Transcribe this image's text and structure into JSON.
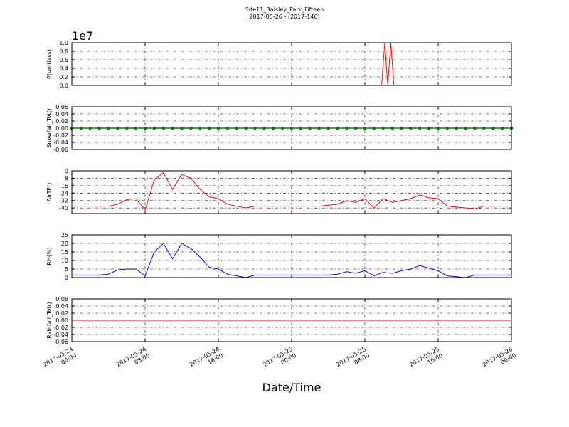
{
  "title": "Site11_Baisley_Park_Fifteen",
  "subtitle": "2017-05-26 - (2017-146)",
  "xlabel": "Date/Time",
  "chart_data": [
    {
      "type": "line",
      "ylabel": "P(unitless)",
      "y_offset_label": "1e7",
      "grid": true,
      "xlim": [
        "2017-05-24 00:00",
        "2017-05-26 00:00"
      ],
      "ylim": [
        0,
        10000000
      ],
      "yticks": [
        {
          "value": 0,
          "label": "0.0"
        },
        {
          "value": 2000000,
          "label": "0.2"
        },
        {
          "value": 4000000,
          "label": "0.4"
        },
        {
          "value": 6000000,
          "label": "0.6"
        },
        {
          "value": 8000000,
          "label": "0.8"
        },
        {
          "value": 10000000,
          "label": "1.0"
        }
      ],
      "series": [
        {
          "color": "#ff0000",
          "marker": false,
          "x": [
            "2017-05-24 00:00",
            "2017-05-25 09:50",
            "2017-05-25 10:10",
            "2017-05-25 10:30",
            "2017-05-25 10:50",
            "2017-05-25 11:10",
            "2017-05-26 00:00"
          ],
          "values": [
            0,
            0,
            10000000,
            0,
            10000000,
            0,
            0
          ]
        }
      ]
    },
    {
      "type": "line",
      "ylabel": "Snowfall_Tot()",
      "grid": true,
      "xlim": [
        "2017-05-24 00:00",
        "2017-05-26 00:00"
      ],
      "ylim": [
        -0.06,
        0.06
      ],
      "yticks": [
        {
          "value": -0.06,
          "label": "-0.06"
        },
        {
          "value": -0.04,
          "label": "-0.04"
        },
        {
          "value": -0.02,
          "label": "-0.02"
        },
        {
          "value": 0,
          "label": "0.00"
        },
        {
          "value": 0.02,
          "label": "0.02"
        },
        {
          "value": 0.04,
          "label": "0.04"
        },
        {
          "value": 0.06,
          "label": "0.06"
        }
      ],
      "series": [
        {
          "color": "#008000",
          "marker": true,
          "x": [
            "2017-05-24 00:00",
            "2017-05-24 01:00",
            "2017-05-24 02:00",
            "2017-05-24 03:00",
            "2017-05-24 04:00",
            "2017-05-24 05:00",
            "2017-05-24 06:00",
            "2017-05-24 07:00",
            "2017-05-24 08:00",
            "2017-05-24 09:00",
            "2017-05-24 10:00",
            "2017-05-24 11:00",
            "2017-05-24 12:00",
            "2017-05-24 13:00",
            "2017-05-24 14:00",
            "2017-05-24 15:00",
            "2017-05-24 16:00",
            "2017-05-24 17:00",
            "2017-05-24 18:00",
            "2017-05-24 19:00",
            "2017-05-24 20:00",
            "2017-05-24 21:00",
            "2017-05-24 22:00",
            "2017-05-24 23:00",
            "2017-05-25 00:00",
            "2017-05-25 01:00",
            "2017-05-25 02:00",
            "2017-05-25 03:00",
            "2017-05-25 04:00",
            "2017-05-25 05:00",
            "2017-05-25 06:00",
            "2017-05-25 07:00",
            "2017-05-25 08:00",
            "2017-05-25 09:00",
            "2017-05-25 10:00",
            "2017-05-25 11:00",
            "2017-05-25 12:00",
            "2017-05-25 13:00",
            "2017-05-25 14:00",
            "2017-05-25 15:00",
            "2017-05-25 16:00",
            "2017-05-25 17:00",
            "2017-05-25 18:00",
            "2017-05-25 19:00",
            "2017-05-25 20:00",
            "2017-05-25 21:00",
            "2017-05-25 22:00",
            "2017-05-25 23:00",
            "2017-05-26 00:00"
          ],
          "values": [
            0,
            0,
            0,
            0,
            0,
            0,
            0,
            0,
            0,
            0,
            0,
            0,
            0,
            0,
            0,
            0,
            0,
            0,
            0,
            0,
            0,
            0,
            0,
            0,
            0,
            0,
            0,
            0,
            0,
            0,
            0,
            0,
            0,
            0,
            0,
            0,
            0,
            0,
            0,
            0,
            0,
            0,
            0,
            0,
            0,
            0,
            0,
            0,
            0
          ]
        }
      ]
    },
    {
      "type": "line",
      "ylabel": "AirTF()",
      "grid": true,
      "xlim": [
        "2017-05-24 00:00",
        "2017-05-26 00:00"
      ],
      "ylim": [
        -46,
        0
      ],
      "yticks": [
        {
          "value": -40,
          "label": "-40"
        },
        {
          "value": -32,
          "label": "-32"
        },
        {
          "value": -24,
          "label": "-24"
        },
        {
          "value": -16,
          "label": "-16"
        },
        {
          "value": -8,
          "label": "-8"
        },
        0
      ],
      "series": [
        {
          "color": "#ff0000",
          "marker": false,
          "x": [
            "2017-05-24 00:00",
            "2017-05-24 01:00",
            "2017-05-24 02:00",
            "2017-05-24 03:00",
            "2017-05-24 04:00",
            "2017-05-24 05:00",
            "2017-05-24 06:00",
            "2017-05-24 07:00",
            "2017-05-24 08:00",
            "2017-05-24 09:00",
            "2017-05-24 10:00",
            "2017-05-24 11:00",
            "2017-05-24 12:00",
            "2017-05-24 13:00",
            "2017-05-24 14:00",
            "2017-05-24 15:00",
            "2017-05-24 16:00",
            "2017-05-24 17:00",
            "2017-05-24 18:00",
            "2017-05-24 19:00",
            "2017-05-24 20:00",
            "2017-05-24 21:00",
            "2017-05-24 22:00",
            "2017-05-24 23:00",
            "2017-05-25 00:00",
            "2017-05-25 01:00",
            "2017-05-25 02:00",
            "2017-05-25 03:00",
            "2017-05-25 04:00",
            "2017-05-25 05:00",
            "2017-05-25 06:00",
            "2017-05-25 07:00",
            "2017-05-25 08:00",
            "2017-05-25 09:00",
            "2017-05-25 10:00",
            "2017-05-25 11:00",
            "2017-05-25 12:00",
            "2017-05-25 13:00",
            "2017-05-25 14:00",
            "2017-05-25 15:00",
            "2017-05-25 16:00",
            "2017-05-25 17:00",
            "2017-05-25 18:00",
            "2017-05-25 19:00",
            "2017-05-25 20:00",
            "2017-05-25 21:00",
            "2017-05-25 22:00",
            "2017-05-25 23:00",
            "2017-05-26 00:00"
          ],
          "values": [
            -38,
            -38,
            -38,
            -38,
            -38,
            -36,
            -31,
            -30,
            -42,
            -10,
            -2,
            -20,
            -4,
            -8,
            -20,
            -28,
            -30,
            -36,
            -38,
            -40,
            -38,
            -38,
            -38,
            -38,
            -38,
            -38,
            -38,
            -38,
            -37,
            -36,
            -32,
            -34,
            -30,
            -40,
            -30,
            -34,
            -32,
            -30,
            -26,
            -29,
            -30,
            -38,
            -39,
            -40,
            -41,
            -38,
            -38,
            -38,
            -38
          ]
        }
      ]
    },
    {
      "type": "line",
      "ylabel": "RH(%)",
      "grid": true,
      "xlim": [
        "2017-05-24 00:00",
        "2017-05-26 00:00"
      ],
      "ylim": [
        0,
        25
      ],
      "yticks": [
        0,
        5,
        10,
        15,
        20,
        25
      ],
      "series": [
        {
          "color": "#0000ff",
          "marker": false,
          "x": [
            "2017-05-24 00:00",
            "2017-05-24 01:00",
            "2017-05-24 02:00",
            "2017-05-24 03:00",
            "2017-05-24 04:00",
            "2017-05-24 05:00",
            "2017-05-24 06:00",
            "2017-05-24 07:00",
            "2017-05-24 08:00",
            "2017-05-24 09:00",
            "2017-05-24 10:00",
            "2017-05-24 11:00",
            "2017-05-24 12:00",
            "2017-05-24 13:00",
            "2017-05-24 14:00",
            "2017-05-24 15:00",
            "2017-05-24 16:00",
            "2017-05-24 17:00",
            "2017-05-24 18:00",
            "2017-05-24 19:00",
            "2017-05-24 20:00",
            "2017-05-24 21:00",
            "2017-05-24 22:00",
            "2017-05-24 23:00",
            "2017-05-25 00:00",
            "2017-05-25 01:00",
            "2017-05-25 02:00",
            "2017-05-25 03:00",
            "2017-05-25 04:00",
            "2017-05-25 05:00",
            "2017-05-25 06:00",
            "2017-05-25 07:00",
            "2017-05-25 08:00",
            "2017-05-25 09:00",
            "2017-05-25 10:00",
            "2017-05-25 11:00",
            "2017-05-25 12:00",
            "2017-05-25 13:00",
            "2017-05-25 14:00",
            "2017-05-25 15:00",
            "2017-05-25 16:00",
            "2017-05-25 17:00",
            "2017-05-25 18:00",
            "2017-05-25 19:00",
            "2017-05-25 20:00",
            "2017-05-25 21:00",
            "2017-05-25 22:00",
            "2017-05-25 23:00",
            "2017-05-26 00:00"
          ],
          "values": [
            1.5,
            1.5,
            1.5,
            1.5,
            2,
            4.5,
            5,
            5,
            1,
            15,
            20,
            11,
            20,
            17,
            12,
            6,
            5,
            2,
            1,
            0,
            1.5,
            1.5,
            1.5,
            1.5,
            1.5,
            1.5,
            1.5,
            1.5,
            1.5,
            2,
            3.5,
            2.5,
            4,
            1,
            3,
            2.5,
            4,
            5,
            7,
            5.5,
            4,
            1,
            0.5,
            0,
            1.5,
            1.5,
            1.5,
            1.5,
            1.5
          ]
        }
      ]
    },
    {
      "type": "line",
      "ylabel": "Rainfall_Tot()",
      "grid": true,
      "xlim": [
        "2017-05-24 00:00",
        "2017-05-26 00:00"
      ],
      "ylim": [
        -0.06,
        0.06
      ],
      "yticks": [
        {
          "value": -0.06,
          "label": "-0.06"
        },
        {
          "value": -0.04,
          "label": "-0.04"
        },
        {
          "value": -0.02,
          "label": "-0.02"
        },
        {
          "value": 0,
          "label": "0.00"
        },
        {
          "value": 0.02,
          "label": "0.02"
        },
        {
          "value": 0.04,
          "label": "0.04"
        },
        {
          "value": 0.06,
          "label": "0.06"
        }
      ],
      "xticks": [
        {
          "value": "2017-05-24 00:00",
          "label": "2017-05-24\n00:00"
        },
        {
          "value": "2017-05-24 08:00",
          "label": "2017-05-24\n08:00"
        },
        {
          "value": "2017-05-24 16:00",
          "label": "2017-05-24\n16:00"
        },
        {
          "value": "2017-05-25 00:00",
          "label": "2017-05-25\n00:00"
        },
        {
          "value": "2017-05-25 08:00",
          "label": "2017-05-25\n08:00"
        },
        {
          "value": "2017-05-25 16:00",
          "label": "2017-05-25\n16:00"
        },
        {
          "value": "2017-05-26 00:00",
          "label": "2017-05-26\n00:00"
        }
      ],
      "series": [
        {
          "color": "#ff0000",
          "marker": false,
          "x": [
            "2017-05-24 00:00",
            "2017-05-24 01:00",
            "2017-05-24 02:00",
            "2017-05-24 03:00",
            "2017-05-24 04:00",
            "2017-05-24 05:00",
            "2017-05-24 06:00",
            "2017-05-24 07:00",
            "2017-05-24 08:00",
            "2017-05-24 09:00",
            "2017-05-24 10:00",
            "2017-05-24 11:00",
            "2017-05-24 12:00",
            "2017-05-24 13:00",
            "2017-05-24 14:00",
            "2017-05-24 15:00",
            "2017-05-24 16:00",
            "2017-05-24 17:00",
            "2017-05-24 18:00",
            "2017-05-24 19:00",
            "2017-05-24 20:00",
            "2017-05-24 21:00",
            "2017-05-24 22:00",
            "2017-05-24 23:00",
            "2017-05-25 00:00",
            "2017-05-25 01:00",
            "2017-05-25 02:00",
            "2017-05-25 03:00",
            "2017-05-25 04:00",
            "2017-05-25 05:00",
            "2017-05-25 06:00",
            "2017-05-25 07:00",
            "2017-05-25 08:00",
            "2017-05-25 09:00",
            "2017-05-25 10:00",
            "2017-05-25 11:00",
            "2017-05-25 12:00",
            "2017-05-25 13:00",
            "2017-05-25 14:00",
            "2017-05-25 15:00",
            "2017-05-25 16:00",
            "2017-05-25 17:00",
            "2017-05-25 18:00",
            "2017-05-25 19:00",
            "2017-05-25 20:00",
            "2017-05-25 21:00",
            "2017-05-25 22:00",
            "2017-05-25 23:00",
            "2017-05-26 00:00"
          ],
          "values": [
            0,
            0,
            0,
            0,
            0,
            0,
            0,
            0,
            0,
            0,
            0,
            0,
            0,
            0,
            0,
            0,
            0,
            0,
            0,
            0,
            0,
            0,
            0,
            0,
            0,
            0,
            0,
            0,
            0,
            0,
            0,
            0,
            0,
            0,
            0,
            0,
            0,
            0,
            0,
            0,
            0,
            0,
            0,
            0,
            0,
            0,
            0,
            0,
            0
          ]
        }
      ]
    }
  ]
}
